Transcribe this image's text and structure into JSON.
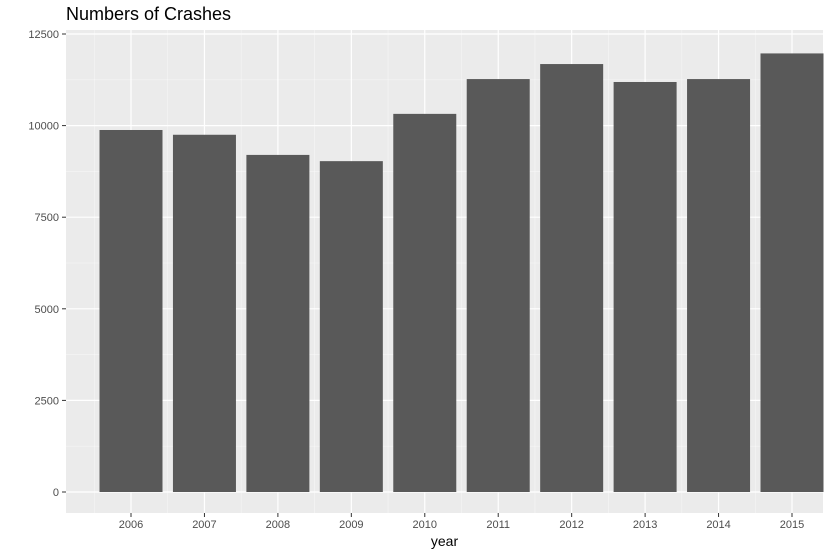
{
  "chart_data": {
    "type": "bar",
    "title": "Numbers of Crashes",
    "xlabel": "year",
    "ylabel": "",
    "categories": [
      "2006",
      "2007",
      "2008",
      "2009",
      "2010",
      "2011",
      "2012",
      "2013",
      "2014",
      "2015"
    ],
    "values": [
      9880,
      9750,
      9200,
      9030,
      10320,
      11270,
      11680,
      11190,
      11270,
      11970
    ],
    "ylim": [
      0,
      12500
    ],
    "yticks": [
      0,
      2500,
      5000,
      7500,
      10000,
      12500
    ],
    "ytick_labels": [
      "0",
      "2500",
      "5000",
      "7500",
      "10000",
      "12500"
    ],
    "grid": true,
    "legend": "none",
    "colors": {
      "bar": "#595959",
      "panel_background": "#ebebeb",
      "grid_major": "#ffffff",
      "grid_minor": "#f5f5f5",
      "tick_text": "#4d4d4d"
    }
  }
}
